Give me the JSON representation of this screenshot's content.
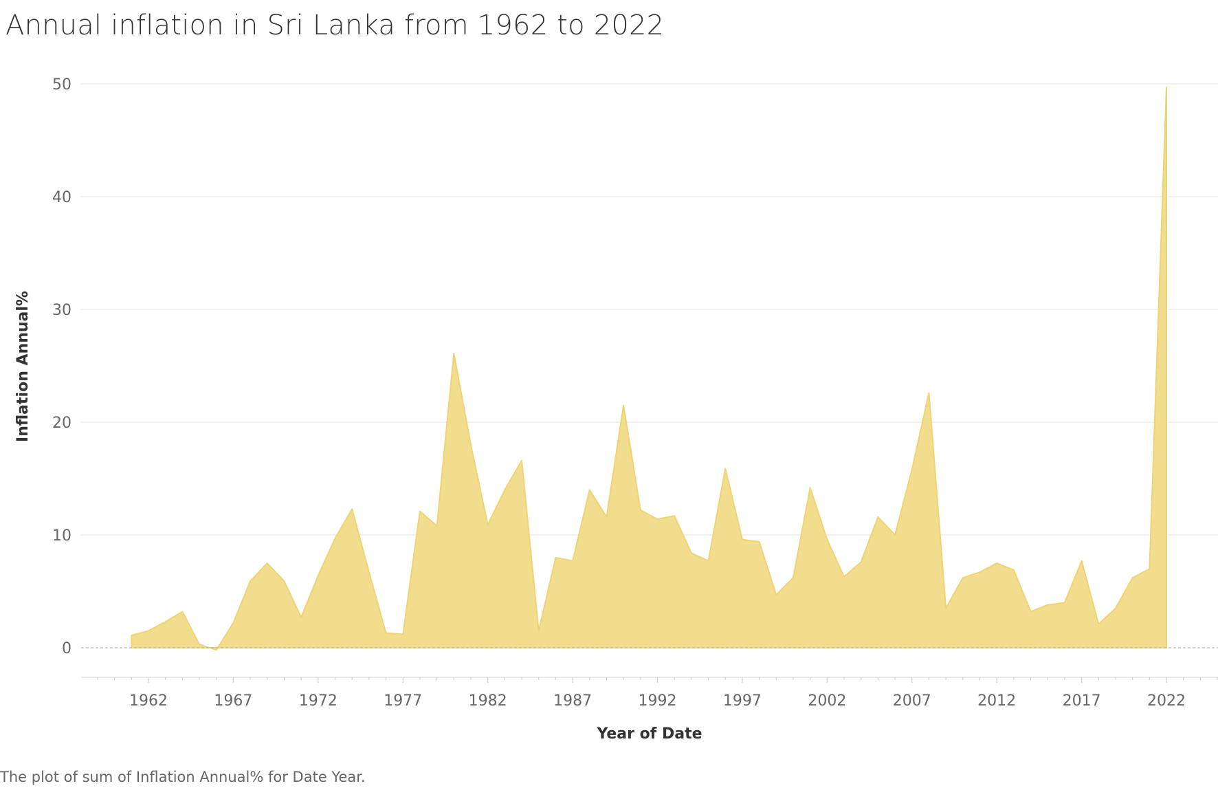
{
  "title": "Annual inflation in Sri Lanka from 1962 to 2022",
  "caption": "The plot of sum of Inflation Annual% for Date Year.",
  "colors": {
    "area_fill": "#f2dc8d",
    "area_stroke": "#efd475",
    "grid": "#ebebeb",
    "zero_line": "#b5b5b5"
  },
  "chart_data": {
    "type": "area",
    "xlabel": "Year of Date",
    "ylabel": "Inflation Annual%",
    "ylim": [
      -2.6,
      50
    ],
    "xlim": [
      1958,
      2025
    ],
    "x_ticks": [
      "1962",
      "1967",
      "1972",
      "1977",
      "1982",
      "1987",
      "1992",
      "1997",
      "2002",
      "2007",
      "2012",
      "2017",
      "2022"
    ],
    "y_ticks": [
      "0",
      "10",
      "20",
      "30",
      "40",
      "50"
    ],
    "grid": true,
    "series": [
      {
        "x": [
          1961,
          1962,
          1963,
          1964,
          1965,
          1966,
          1967,
          1968,
          1969,
          1970,
          1971,
          1972,
          1973,
          1974,
          1975,
          1976,
          1977,
          1978,
          1979,
          1980,
          1981,
          1982,
          1983,
          1984,
          1985,
          1986,
          1987,
          1988,
          1989,
          1990,
          1991,
          1992,
          1993,
          1994,
          1995,
          1996,
          1997,
          1998,
          1999,
          2000,
          2001,
          2002,
          2003,
          2004,
          2005,
          2006,
          2007,
          2008,
          2009,
          2010,
          2011,
          2012,
          2013,
          2014,
          2015,
          2016,
          2017,
          2018,
          2019,
          2020,
          2021,
          2022
        ],
        "values": [
          1.1,
          1.5,
          2.3,
          3.2,
          0.3,
          -0.2,
          2.2,
          5.9,
          7.5,
          5.9,
          2.7,
          6.4,
          9.7,
          12.3,
          6.7,
          1.3,
          1.2,
          12.1,
          10.8,
          26.1,
          18.0,
          10.9,
          14.0,
          16.6,
          1.5,
          8.0,
          7.7,
          14.0,
          11.6,
          21.5,
          12.2,
          11.4,
          11.7,
          8.4,
          7.7,
          15.9,
          9.6,
          9.4,
          4.7,
          6.2,
          14.2,
          9.6,
          6.3,
          7.6,
          11.6,
          10.0,
          15.8,
          22.6,
          3.5,
          6.2,
          6.7,
          7.5,
          6.9,
          3.2,
          3.8,
          4.0,
          7.7,
          2.1,
          3.5,
          6.2,
          7.0,
          49.7
        ]
      }
    ]
  }
}
